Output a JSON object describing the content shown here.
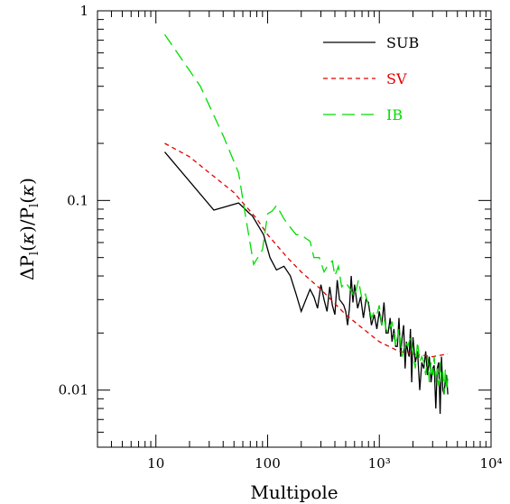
{
  "chart_data": {
    "type": "line",
    "xscale": "log",
    "yscale": "log",
    "xlabel": "Multipole",
    "ylabel": "ΔP_l(κ)/P_l(κ)",
    "xlim": [
      3,
      10000
    ],
    "ylim": [
      0.005,
      1
    ],
    "x_ticks": [
      10,
      100,
      1000,
      10000
    ],
    "x_tick_labels": [
      "10",
      "100",
      "10³",
      "10⁴"
    ],
    "y_ticks": [
      0.01,
      0.1,
      1
    ],
    "y_tick_labels": [
      "0.01",
      "0.1",
      "1"
    ],
    "grid": false,
    "legend_position": "top-right",
    "series": [
      {
        "name": "SUB",
        "color": "#000000",
        "dash": "solid",
        "x": [
          12,
          33,
          55,
          63,
          68,
          73,
          92,
          105,
          120,
          140,
          160,
          180,
          200,
          220,
          240,
          260,
          280,
          300,
          320,
          340,
          360,
          380,
          400,
          420,
          440,
          460,
          480,
          500,
          520,
          540,
          560,
          580,
          600,
          640,
          680,
          720,
          760,
          800,
          850,
          900,
          950,
          1000,
          1050,
          1100,
          1150,
          1200,
          1250,
          1300,
          1350,
          1400,
          1450,
          1500,
          1550,
          1600,
          1650,
          1700,
          1750,
          1800,
          1850,
          1900,
          1950,
          2000,
          2100,
          2200,
          2300,
          2400,
          2500,
          2600,
          2700,
          2800,
          2900,
          3000,
          3100,
          3200,
          3300,
          3400,
          3500,
          3600,
          3700,
          3800,
          3900,
          4000,
          4100
        ],
        "y": [
          0.18,
          0.089,
          0.097,
          0.09,
          0.086,
          0.083,
          0.066,
          0.05,
          0.043,
          0.045,
          0.04,
          0.032,
          0.026,
          0.03,
          0.034,
          0.031,
          0.027,
          0.036,
          0.03,
          0.026,
          0.035,
          0.028,
          0.025,
          0.038,
          0.03,
          0.029,
          0.028,
          0.026,
          0.022,
          0.027,
          0.04,
          0.029,
          0.036,
          0.027,
          0.031,
          0.024,
          0.03,
          0.029,
          0.022,
          0.025,
          0.021,
          0.026,
          0.022,
          0.029,
          0.02,
          0.02,
          0.024,
          0.018,
          0.021,
          0.017,
          0.017,
          0.024,
          0.015,
          0.019,
          0.022,
          0.013,
          0.018,
          0.016,
          0.015,
          0.021,
          0.011,
          0.019,
          0.014,
          0.016,
          0.01,
          0.014,
          0.013,
          0.016,
          0.012,
          0.015,
          0.011,
          0.013,
          0.0135,
          0.008,
          0.013,
          0.014,
          0.0075,
          0.015,
          0.01,
          0.0095,
          0.0115,
          0.012,
          0.0095
        ]
      },
      {
        "name": "SV",
        "color": "#e30000",
        "dash": "short-dash",
        "x": [
          12,
          20,
          30,
          50,
          80,
          100,
          150,
          200,
          300,
          500,
          800,
          1000,
          1500,
          2000,
          3000,
          4100
        ],
        "y": [
          0.2,
          0.17,
          0.14,
          0.11,
          0.08,
          0.066,
          0.05,
          0.042,
          0.034,
          0.025,
          0.02,
          0.018,
          0.016,
          0.0155,
          0.015,
          0.0155
        ]
      },
      {
        "name": "IB",
        "color": "#00dd00",
        "dash": "long-dash",
        "x": [
          12,
          25,
          40,
          55,
          63,
          75,
          90,
          100,
          110,
          120,
          140,
          160,
          180,
          200,
          220,
          240,
          260,
          290,
          320,
          350,
          380,
          400,
          430,
          460,
          500,
          550,
          600,
          650,
          700,
          750,
          800,
          850,
          900,
          950,
          1000,
          1050,
          1100,
          1150,
          1200,
          1300,
          1400,
          1500,
          1600,
          1700,
          1800,
          1900,
          2000,
          2100,
          2200,
          2300,
          2400,
          2500,
          2600,
          2700,
          2800,
          2900,
          3000,
          3100,
          3200,
          3300,
          3400,
          3500,
          3600,
          3700,
          3800,
          3900,
          4000,
          4100
        ],
        "y": [
          0.75,
          0.4,
          0.22,
          0.14,
          0.085,
          0.046,
          0.055,
          0.085,
          0.088,
          0.094,
          0.08,
          0.072,
          0.066,
          0.066,
          0.063,
          0.061,
          0.05,
          0.05,
          0.042,
          0.046,
          0.048,
          0.04,
          0.045,
          0.035,
          0.037,
          0.034,
          0.031,
          0.038,
          0.03,
          0.032,
          0.028,
          0.024,
          0.026,
          0.025,
          0.028,
          0.022,
          0.024,
          0.021,
          0.02,
          0.023,
          0.017,
          0.021,
          0.015,
          0.018,
          0.017,
          0.019,
          0.016,
          0.013,
          0.018,
          0.014,
          0.015,
          0.014,
          0.012,
          0.015,
          0.011,
          0.014,
          0.012,
          0.015,
          0.011,
          0.013,
          0.0105,
          0.014,
          0.011,
          0.0125,
          0.0095,
          0.013,
          0.01,
          0.0115
        ]
      }
    ]
  }
}
